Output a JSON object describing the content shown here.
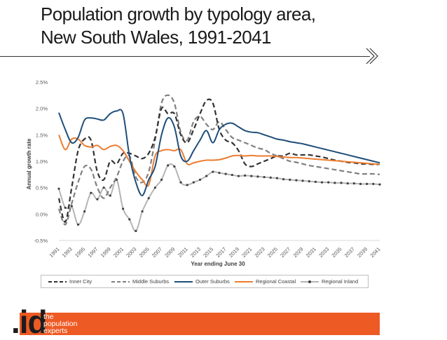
{
  "page": {
    "title_line1": "Population growth by typology area,",
    "title_line2": "New South Wales, 1991-2041"
  },
  "logo": {
    "mark": ".id",
    "tagline": [
      "the",
      "population",
      "experts"
    ],
    "color": "#ee5a24"
  },
  "chart_data": {
    "type": "line",
    "title": "",
    "xlabel": "Year ending June 30",
    "ylabel": "Annual growth rate",
    "ylim": [
      -0.5,
      2.5
    ],
    "yticks": [
      -0.5,
      0.0,
      0.5,
      1.0,
      1.5,
      2.0,
      2.5
    ],
    "ytick_labels": [
      "-0.5%",
      "0.0%",
      "0.5%",
      "1.0%",
      "1.5%",
      "2.0%",
      "2.5%"
    ],
    "xlim": [
      1991,
      2041
    ],
    "xticks": [
      1991,
      1993,
      1995,
      1997,
      1999,
      2001,
      2003,
      2005,
      2007,
      2009,
      2011,
      2013,
      2015,
      2017,
      2019,
      2021,
      2023,
      2025,
      2027,
      2029,
      2031,
      2033,
      2035,
      2037,
      2039,
      2041
    ],
    "grid": false,
    "legend_position": "bottom",
    "series": [
      {
        "name": "Inner City",
        "color": "#333333",
        "style": "dashed",
        "x": [
          1991,
          1992,
          1993,
          1994,
          1995,
          1996,
          1997,
          1998,
          1999,
          2000,
          2001,
          2002,
          2003,
          2004,
          2005,
          2006,
          2007,
          2008,
          2009,
          2010,
          2011,
          2012,
          2013,
          2014,
          2015,
          2016,
          2017,
          2018,
          2019,
          2020,
          2021,
          2022,
          2023,
          2024,
          2025,
          2026,
          2027,
          2028,
          2029,
          2030,
          2031,
          2032,
          2033,
          2034,
          2035,
          2036,
          2037,
          2038,
          2039,
          2040,
          2041
        ],
        "y": [
          0.3,
          -0.15,
          0.5,
          1.2,
          1.42,
          1.4,
          0.8,
          0.65,
          1.0,
          0.95,
          1.15,
          1.15,
          1.1,
          1.05,
          1.15,
          1.45,
          2.0,
          1.9,
          1.9,
          1.5,
          1.35,
          1.6,
          1.9,
          2.15,
          2.1,
          1.6,
          1.4,
          1.35,
          1.2,
          0.95,
          0.9,
          0.95,
          1.0,
          1.05,
          1.1,
          1.1,
          1.15,
          1.12,
          1.12,
          1.12,
          1.1,
          1.08,
          1.05,
          1.02,
          1.0,
          0.98,
          0.97,
          0.95,
          0.95,
          0.94,
          0.94
        ]
      },
      {
        "name": "Middle Suburbs",
        "color": "#808080",
        "style": "dashed",
        "x": [
          1991,
          1992,
          1993,
          1994,
          1995,
          1996,
          1997,
          1998,
          1999,
          2000,
          2001,
          2002,
          2003,
          2004,
          2005,
          2006,
          2007,
          2008,
          2009,
          2010,
          2011,
          2012,
          2013,
          2014,
          2015,
          2016,
          2017,
          2018,
          2019,
          2020,
          2021,
          2022,
          2023,
          2024,
          2025,
          2026,
          2027,
          2028,
          2029,
          2030,
          2031,
          2032,
          2033,
          2034,
          2035,
          2036,
          2037,
          2038,
          2039,
          2040,
          2041
        ],
        "y": [
          0.1,
          -0.2,
          0.2,
          0.6,
          0.9,
          0.85,
          0.5,
          0.3,
          0.5,
          0.7,
          1.0,
          1.1,
          0.7,
          0.6,
          0.8,
          1.4,
          2.1,
          2.25,
          2.1,
          1.55,
          1.4,
          1.75,
          1.85,
          1.7,
          1.6,
          1.75,
          1.6,
          1.45,
          1.4,
          1.35,
          1.3,
          1.25,
          1.22,
          1.15,
          1.1,
          1.05,
          1.0,
          0.98,
          0.95,
          0.92,
          0.9,
          0.88,
          0.86,
          0.84,
          0.82,
          0.8,
          0.78,
          0.76,
          0.76,
          0.76,
          0.75
        ]
      },
      {
        "name": "Outer Suburbs",
        "color": "#1f4e79",
        "style": "solid",
        "x": [
          1991,
          1992,
          1993,
          1994,
          1995,
          1996,
          1997,
          1998,
          1999,
          2000,
          2001,
          2002,
          2003,
          2004,
          2005,
          2006,
          2007,
          2008,
          2009,
          2010,
          2011,
          2012,
          2013,
          2014,
          2015,
          2016,
          2017,
          2018,
          2019,
          2020,
          2021,
          2022,
          2023,
          2024,
          2025,
          2026,
          2027,
          2028,
          2029,
          2030,
          2031,
          2032,
          2033,
          2034,
          2035,
          2036,
          2037,
          2038,
          2039,
          2040,
          2041
        ],
        "y": [
          1.92,
          1.6,
          1.35,
          1.45,
          1.78,
          1.82,
          1.8,
          1.78,
          1.9,
          1.95,
          1.9,
          1.1,
          0.6,
          0.35,
          0.65,
          0.9,
          1.5,
          1.82,
          1.65,
          1.1,
          1.0,
          1.2,
          1.4,
          1.58,
          1.35,
          1.6,
          1.7,
          1.72,
          1.65,
          1.58,
          1.55,
          1.54,
          1.5,
          1.46,
          1.42,
          1.4,
          1.37,
          1.35,
          1.33,
          1.3,
          1.27,
          1.24,
          1.21,
          1.18,
          1.15,
          1.12,
          1.09,
          1.06,
          1.03,
          1.0,
          0.97
        ]
      },
      {
        "name": "Regional Coastal",
        "color": "#ed7d31",
        "style": "solid",
        "x": [
          1991,
          1992,
          1993,
          1994,
          1995,
          1996,
          1997,
          1998,
          1999,
          2000,
          2001,
          2002,
          2003,
          2004,
          2005,
          2006,
          2007,
          2008,
          2009,
          2010,
          2011,
          2012,
          2013,
          2014,
          2015,
          2016,
          2017,
          2018,
          2019,
          2020,
          2021,
          2022,
          2023,
          2024,
          2025,
          2026,
          2027,
          2028,
          2029,
          2030,
          2031,
          2032,
          2033,
          2034,
          2035,
          2036,
          2037,
          2038,
          2039,
          2040,
          2041
        ],
        "y": [
          1.5,
          1.22,
          1.42,
          1.42,
          1.3,
          1.27,
          1.3,
          1.22,
          1.28,
          1.3,
          1.2,
          1.0,
          0.8,
          0.65,
          0.55,
          1.1,
          1.2,
          1.22,
          1.2,
          1.22,
          0.95,
          0.97,
          1.0,
          1.02,
          1.02,
          1.03,
          1.06,
          1.1,
          1.11,
          1.1,
          1.11,
          1.1,
          1.1,
          1.1,
          1.09,
          1.08,
          1.07,
          1.07,
          1.06,
          1.05,
          1.04,
          1.03,
          1.02,
          1.01,
          1.0,
          0.99,
          0.98,
          0.97,
          0.96,
          0.95,
          0.94
        ]
      },
      {
        "name": "Regional Inland",
        "color": "#b4b4b4",
        "style": "solid-markers",
        "marker_color": "#404040",
        "x": [
          1991,
          1992,
          1993,
          1994,
          1995,
          1996,
          1997,
          1998,
          1999,
          2000,
          2001,
          2002,
          2003,
          2004,
          2005,
          2006,
          2007,
          2008,
          2009,
          2010,
          2011,
          2012,
          2013,
          2014,
          2015,
          2016,
          2017,
          2018,
          2019,
          2020,
          2021,
          2022,
          2023,
          2024,
          2025,
          2026,
          2027,
          2028,
          2029,
          2030,
          2031,
          2032,
          2033,
          2034,
          2035,
          2036,
          2037,
          2038,
          2039,
          2040,
          2041
        ],
        "y": [
          0.48,
          0.12,
          0.15,
          -0.2,
          0.05,
          0.4,
          0.28,
          0.5,
          0.35,
          0.65,
          0.1,
          -0.1,
          -0.32,
          0.05,
          0.3,
          0.5,
          0.65,
          0.92,
          0.9,
          0.6,
          0.55,
          0.6,
          0.65,
          0.72,
          0.8,
          0.78,
          0.76,
          0.74,
          0.72,
          0.73,
          0.72,
          0.71,
          0.7,
          0.69,
          0.68,
          0.66,
          0.65,
          0.64,
          0.63,
          0.62,
          0.61,
          0.6,
          0.6,
          0.59,
          0.59,
          0.58,
          0.58,
          0.57,
          0.57,
          0.57,
          0.56
        ]
      }
    ]
  }
}
